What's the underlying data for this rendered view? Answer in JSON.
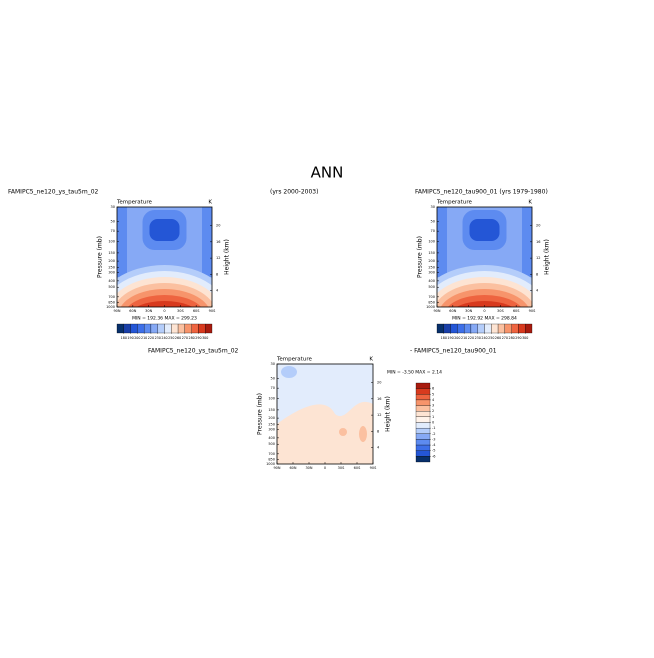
{
  "title": "ANN",
  "case_labels": {
    "top_left": "FAMIPC5_ne120_ys_tau5m_02",
    "top_center": "(yrs 2000-2003)",
    "top_right": "FAMIPC5_ne120_tau900_01 (yrs 1979-1980)",
    "bottom_left": "FAMIPC5_ne120_ys_tau5m_02",
    "bottom_right": "- FAMIPC5_ne120_tau900_01"
  },
  "panels": [
    {
      "title": "Temperature",
      "units": "K",
      "y_label": "Pressure (mb)",
      "y2_label": "Height (km)",
      "xticks": [
        "90N",
        "60N",
        "30N",
        "0",
        "30S",
        "60S",
        "90S"
      ],
      "yticks": [
        30,
        50,
        70,
        100,
        150,
        200,
        250,
        300,
        400,
        500,
        700,
        850,
        1000
      ],
      "y2ticks": [
        4,
        8,
        12,
        16,
        20
      ],
      "stats": "MIN = 192.36   MAX = 299.23",
      "colorbar": {
        "levels": [
          180,
          190,
          200,
          210,
          220,
          230,
          240,
          250,
          260,
          270,
          280,
          290,
          300
        ],
        "colors": [
          "#08306b",
          "#1a3fa8",
          "#2456d6",
          "#3d6fe8",
          "#5d8bf0",
          "#86a9f5",
          "#b4cdfa",
          "#e2ecfc",
          "#fde4d3",
          "#fbc0a0",
          "#f7946b",
          "#ee6440",
          "#d83a1e",
          "#a81b0e"
        ]
      }
    },
    {
      "title": "Temperature",
      "units": "K",
      "y_label": "Pressure (mb)",
      "y2_label": "Height (km)",
      "xticks": [
        "90N",
        "60N",
        "30N",
        "0",
        "30S",
        "60S",
        "90S"
      ],
      "yticks": [
        30,
        50,
        70,
        100,
        150,
        200,
        250,
        300,
        400,
        500,
        700,
        850,
        1000
      ],
      "y2ticks": [
        4,
        8,
        12,
        16,
        20
      ],
      "stats": "MIN = 192.92   MAX = 298.84",
      "colorbar": {
        "levels": [
          180,
          190,
          200,
          210,
          220,
          230,
          240,
          250,
          260,
          270,
          280,
          290,
          300
        ],
        "colors": [
          "#08306b",
          "#1a3fa8",
          "#2456d6",
          "#3d6fe8",
          "#5d8bf0",
          "#86a9f5",
          "#b4cdfa",
          "#e2ecfc",
          "#fde4d3",
          "#fbc0a0",
          "#f7946b",
          "#ee6440",
          "#d83a1e",
          "#a81b0e"
        ]
      }
    },
    {
      "title": "Temperature",
      "units": "K",
      "y_label": "Pressure (mb)",
      "y2_label": "Height (km)",
      "xticks": [
        "90N",
        "60N",
        "30N",
        "0",
        "30S",
        "60S",
        "90S"
      ],
      "yticks": [
        30,
        50,
        70,
        100,
        150,
        200,
        250,
        300,
        400,
        500,
        700,
        850,
        1000
      ],
      "y2ticks": [
        4,
        8,
        12,
        16,
        20
      ],
      "stats": "MIN =  -3.50   MAX =   2.14",
      "colorbar": {
        "levels": [
          6,
          5,
          4,
          3,
          2,
          1,
          0,
          -1,
          -2,
          -3,
          -4,
          -5,
          -6
        ],
        "colors": [
          "#a81b0e",
          "#d83a1e",
          "#ee6440",
          "#f7946b",
          "#fbc0a0",
          "#fde4d3",
          "#fff3ea",
          "#e2ecfc",
          "#b4cdfa",
          "#86a9f5",
          "#5d8bf0",
          "#3d6fe8",
          "#2456d6",
          "#08306b"
        ]
      }
    }
  ]
}
